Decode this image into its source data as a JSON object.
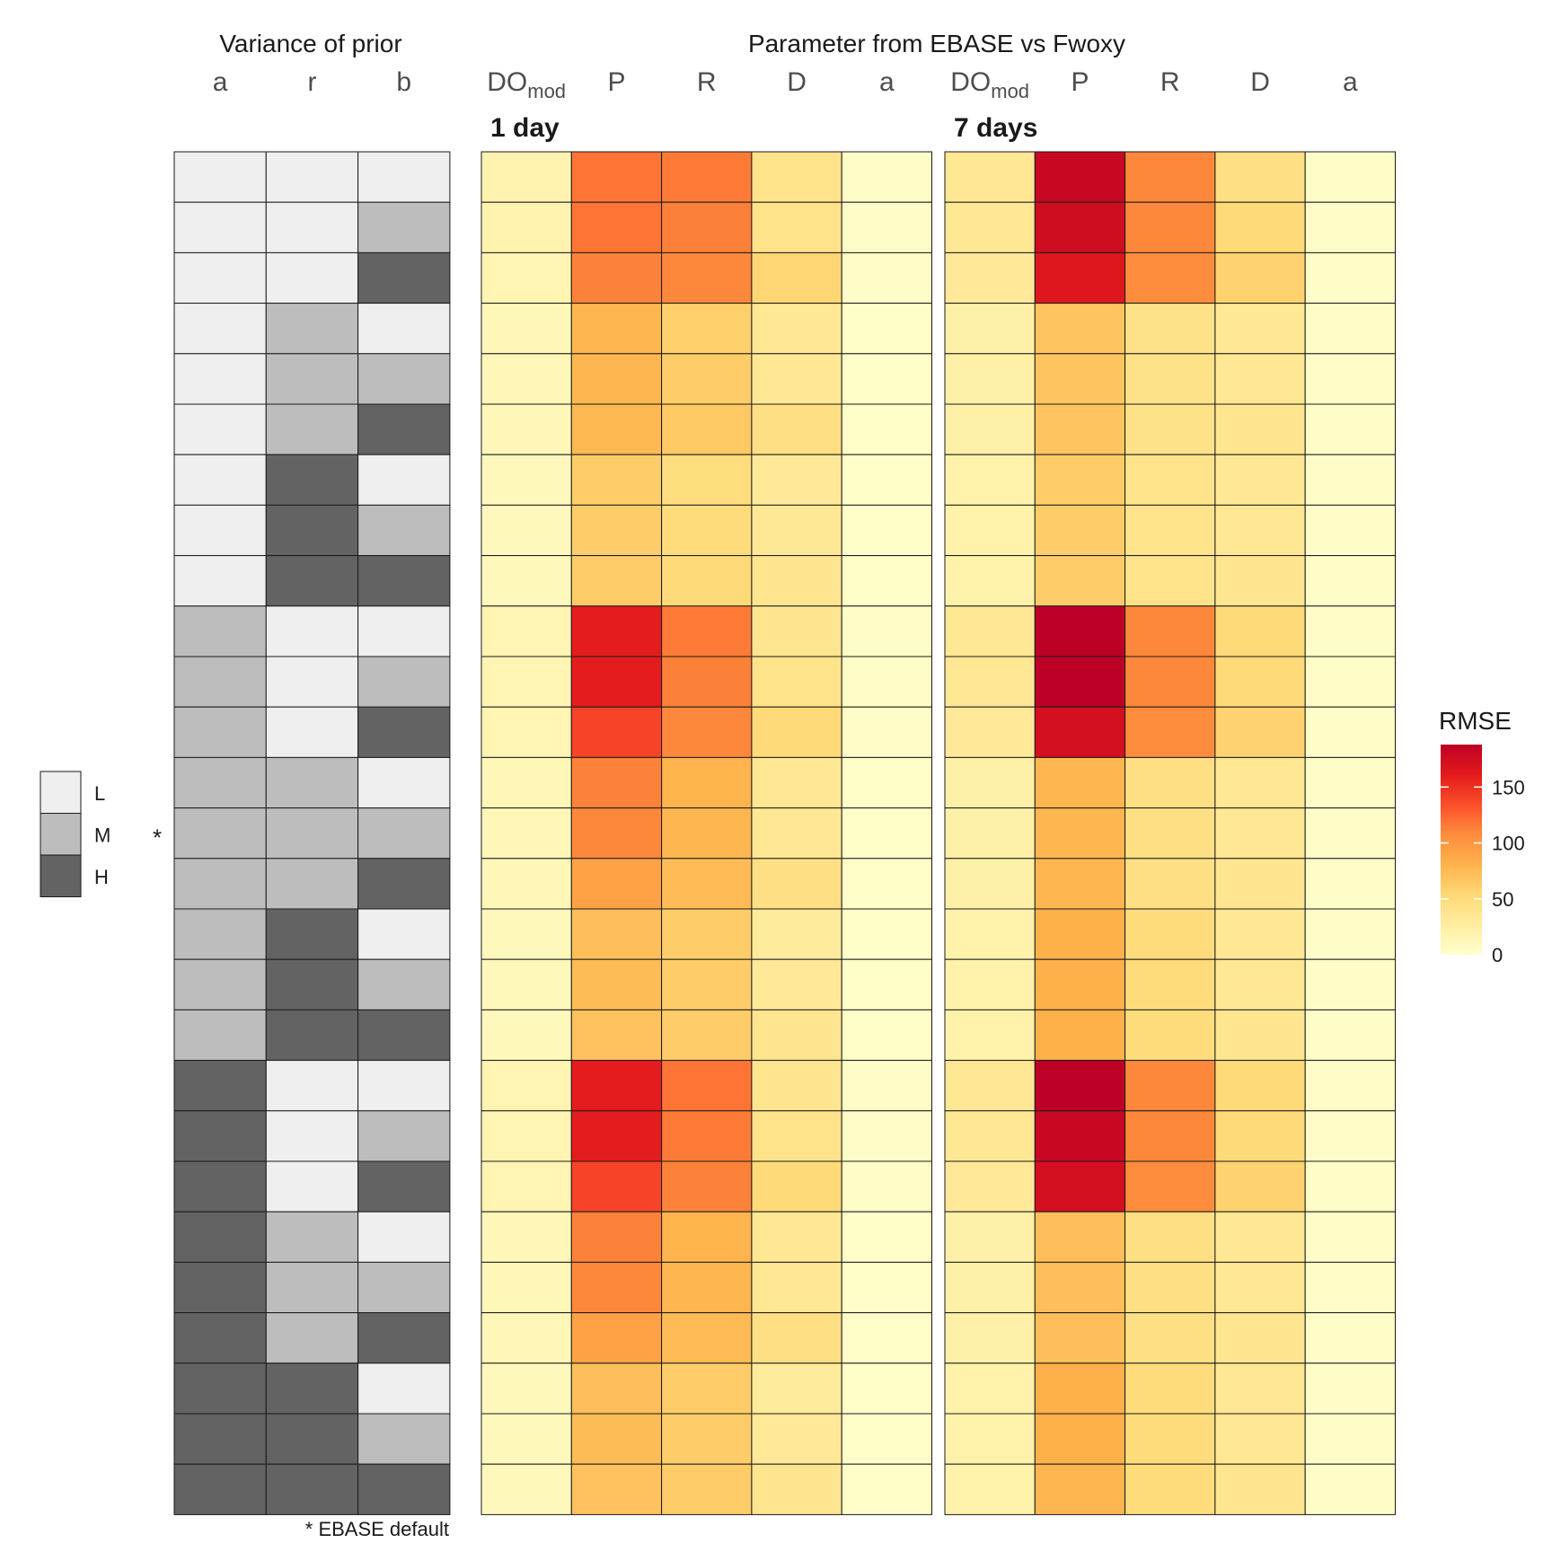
{
  "figure": {
    "prior_title": "Variance of prior",
    "param_title": "Parameter from EBASE vs Fwoxy",
    "prior_columns": [
      "a",
      "r",
      "b"
    ],
    "param_columns": [
      "DO",
      "P",
      "R",
      "D",
      "a"
    ],
    "param_column_subscripts": [
      "mod",
      "",
      "",
      "",
      ""
    ],
    "footnote": "* EBASE default",
    "default_marker": "*",
    "default_row_index": 13,
    "level_legend": {
      "items": [
        {
          "label": "L",
          "color": "#efefef"
        },
        {
          "label": "M",
          "color": "#bdbdbd"
        },
        {
          "label": "H",
          "color": "#636363"
        }
      ]
    },
    "colorbar": {
      "title": "RMSE",
      "ticks": [
        "0",
        "50",
        "100",
        "150"
      ],
      "tick_values": [
        0,
        50,
        100,
        150
      ],
      "min": 0,
      "max": 188,
      "stops": [
        "#ffffcc",
        "#ffeda0",
        "#fed976",
        "#feb24c",
        "#fd8d3c",
        "#fc4e2a",
        "#e31a1c",
        "#bd0026"
      ]
    }
  },
  "chart_data": [
    {
      "type": "heatmap",
      "title": "",
      "columns": [
        "a",
        "r",
        "b"
      ],
      "levels": [
        "L",
        "M",
        "H"
      ],
      "rows": [
        [
          "L",
          "L",
          "L"
        ],
        [
          "L",
          "L",
          "M"
        ],
        [
          "L",
          "L",
          "H"
        ],
        [
          "L",
          "M",
          "L"
        ],
        [
          "L",
          "M",
          "M"
        ],
        [
          "L",
          "M",
          "H"
        ],
        [
          "L",
          "H",
          "L"
        ],
        [
          "L",
          "H",
          "M"
        ],
        [
          "L",
          "H",
          "H"
        ],
        [
          "M",
          "L",
          "L"
        ],
        [
          "M",
          "L",
          "M"
        ],
        [
          "M",
          "L",
          "H"
        ],
        [
          "M",
          "M",
          "L"
        ],
        [
          "M",
          "M",
          "M"
        ],
        [
          "M",
          "M",
          "H"
        ],
        [
          "M",
          "H",
          "L"
        ],
        [
          "M",
          "H",
          "M"
        ],
        [
          "M",
          "H",
          "H"
        ],
        [
          "H",
          "L",
          "L"
        ],
        [
          "H",
          "L",
          "M"
        ],
        [
          "H",
          "L",
          "H"
        ],
        [
          "H",
          "M",
          "L"
        ],
        [
          "H",
          "M",
          "M"
        ],
        [
          "H",
          "M",
          "H"
        ],
        [
          "H",
          "H",
          "L"
        ],
        [
          "H",
          "H",
          "M"
        ],
        [
          "H",
          "H",
          "H"
        ]
      ]
    },
    {
      "type": "heatmap",
      "title": "1 day",
      "columns": [
        "DOmod",
        "P",
        "R",
        "D",
        "a"
      ],
      "value_label": "RMSE",
      "values": [
        [
          18,
          118,
          115,
          40,
          3
        ],
        [
          18,
          118,
          113,
          40,
          3
        ],
        [
          16,
          112,
          110,
          55,
          3
        ],
        [
          12,
          78,
          60,
          35,
          2
        ],
        [
          12,
          78,
          62,
          35,
          2
        ],
        [
          12,
          76,
          65,
          45,
          2
        ],
        [
          10,
          62,
          48,
          32,
          2
        ],
        [
          10,
          62,
          50,
          34,
          2
        ],
        [
          10,
          62,
          52,
          38,
          2
        ],
        [
          16,
          160,
          115,
          38,
          3
        ],
        [
          16,
          160,
          113,
          40,
          3
        ],
        [
          16,
          140,
          110,
          52,
          3
        ],
        [
          12,
          112,
          80,
          35,
          2
        ],
        [
          12,
          110,
          78,
          35,
          2
        ],
        [
          12,
          92,
          75,
          45,
          2
        ],
        [
          10,
          72,
          62,
          30,
          2
        ],
        [
          10,
          74,
          62,
          32,
          2
        ],
        [
          10,
          70,
          62,
          38,
          2
        ],
        [
          16,
          160,
          118,
          38,
          3
        ],
        [
          16,
          160,
          115,
          40,
          3
        ],
        [
          16,
          140,
          112,
          52,
          3
        ],
        [
          12,
          112,
          80,
          35,
          2
        ],
        [
          12,
          110,
          78,
          35,
          2
        ],
        [
          12,
          92,
          75,
          45,
          2
        ],
        [
          10,
          72,
          62,
          30,
          2
        ],
        [
          10,
          74,
          62,
          32,
          2
        ],
        [
          10,
          70,
          62,
          38,
          2
        ]
      ]
    },
    {
      "type": "heatmap",
      "title": "7 days",
      "columns": [
        "DOmod",
        "P",
        "R",
        "D",
        "a"
      ],
      "value_label": "RMSE",
      "values": [
        [
          35,
          180,
          110,
          45,
          3
        ],
        [
          35,
          175,
          110,
          52,
          3
        ],
        [
          32,
          165,
          108,
          58,
          3
        ],
        [
          22,
          68,
          42,
          35,
          3
        ],
        [
          22,
          68,
          42,
          35,
          3
        ],
        [
          22,
          68,
          42,
          38,
          3
        ],
        [
          20,
          62,
          40,
          35,
          3
        ],
        [
          20,
          62,
          40,
          35,
          3
        ],
        [
          20,
          62,
          40,
          38,
          3
        ],
        [
          35,
          188,
          110,
          52,
          3
        ],
        [
          35,
          188,
          110,
          52,
          3
        ],
        [
          32,
          172,
          108,
          58,
          3
        ],
        [
          22,
          78,
          45,
          35,
          3
        ],
        [
          22,
          78,
          45,
          35,
          3
        ],
        [
          22,
          78,
          45,
          38,
          3
        ],
        [
          20,
          82,
          50,
          35,
          3
        ],
        [
          20,
          82,
          50,
          35,
          3
        ],
        [
          20,
          82,
          50,
          38,
          3
        ],
        [
          35,
          188,
          110,
          52,
          3
        ],
        [
          35,
          180,
          110,
          52,
          3
        ],
        [
          32,
          172,
          108,
          58,
          3
        ],
        [
          22,
          72,
          45,
          35,
          3
        ],
        [
          22,
          72,
          45,
          35,
          3
        ],
        [
          22,
          72,
          45,
          38,
          3
        ],
        [
          20,
          82,
          50,
          35,
          3
        ],
        [
          20,
          82,
          50,
          35,
          3
        ],
        [
          20,
          78,
          50,
          38,
          3
        ]
      ]
    }
  ]
}
